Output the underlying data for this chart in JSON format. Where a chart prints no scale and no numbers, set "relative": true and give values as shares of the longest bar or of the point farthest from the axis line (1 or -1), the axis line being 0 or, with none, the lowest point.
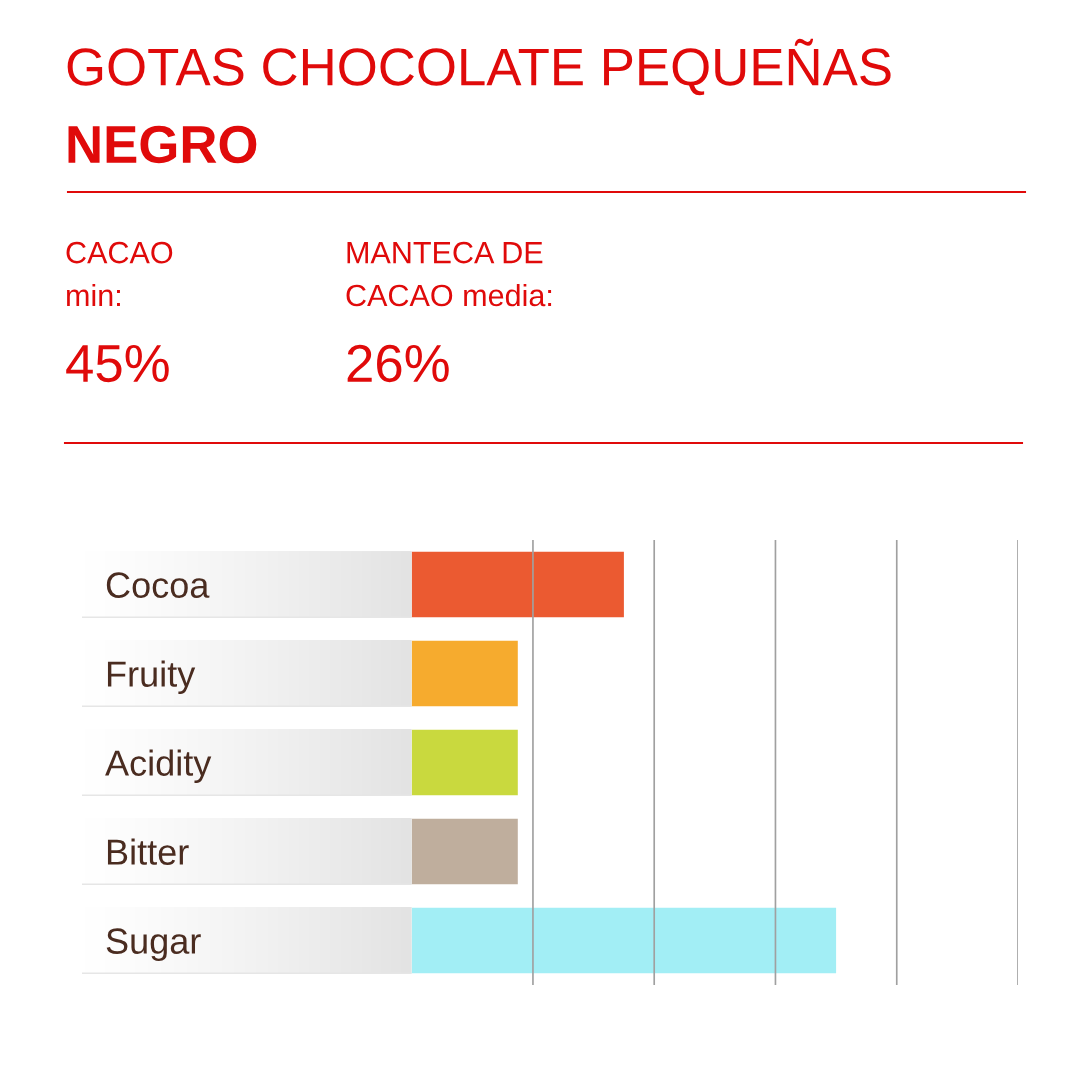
{
  "chart_data": [
    {
      "type": "other",
      "title": "GOTAS CHOCOLATE PEQUEÑAS",
      "subtitle": "NEGRO",
      "annotations": [
        "CACAO\nmin:",
        "45%",
        "MANTECA DE\nCACAO media:",
        "26%"
      ]
    },
    {
      "type": "bar",
      "orientation": "horizontal",
      "categories": [
        "Cocoa",
        "Fruity",
        "Acidity",
        "Bitter",
        "Sugar"
      ],
      "values": [
        0.5,
        0.25,
        0.25,
        0.25,
        1
      ],
      "colors": [
        "#eb5a31",
        "#f6ab2e",
        "#c9d93e",
        "#bfae9d",
        "#a2eef5"
      ],
      "relative": true,
      "ref_lines": [
        {
          "axis": "x",
          "value": 0.2857,
          "color": "#a0a0a0",
          "line_style": "solid"
        },
        {
          "axis": "x",
          "value": 0.5714,
          "color": "#a0a0a0",
          "line_style": "solid"
        },
        {
          "axis": "x",
          "value": 0.8571,
          "color": "#a0a0a0",
          "line_style": "solid"
        },
        {
          "axis": "x",
          "value": 1.1429,
          "color": "#a0a0a0",
          "line_style": "solid"
        },
        {
          "axis": "x",
          "value": 1.4286,
          "color": "#a0a0a0",
          "line_style": "solid"
        }
      ]
    }
  ]
}
